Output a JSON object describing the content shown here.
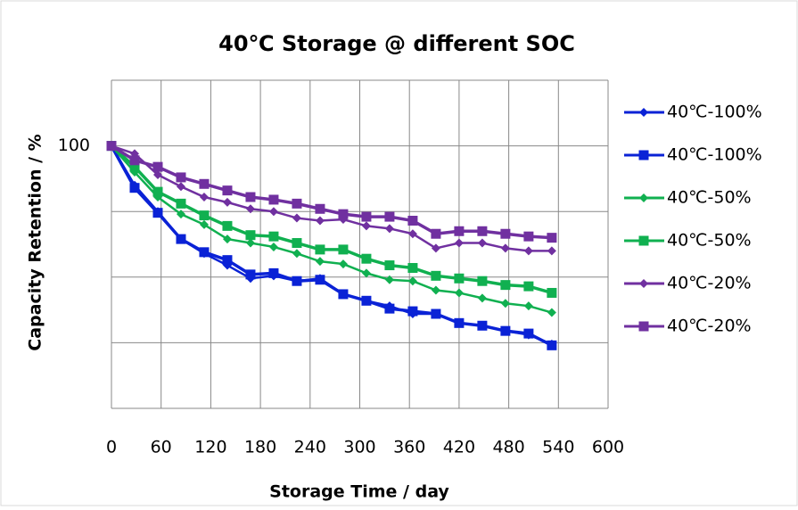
{
  "chart_data": {
    "type": "line",
    "title": "40℃ Storage @ different SOC",
    "x_label": "Storage Time / day",
    "y_label": "Capacity Retention / %",
    "x": [
      0,
      28,
      56,
      84,
      112,
      140,
      168,
      196,
      224,
      252,
      280,
      308,
      336,
      364,
      392,
      420,
      448,
      476,
      504,
      532
    ],
    "xlim": [
      0,
      600
    ],
    "xticks": [
      0,
      60,
      120,
      180,
      240,
      300,
      360,
      420,
      480,
      540,
      600
    ],
    "ylim": [
      80,
      105
    ],
    "yticks": [
      100
    ],
    "ygrid": [
      80,
      85,
      90,
      95,
      100,
      105
    ],
    "grid": true,
    "legend": "right",
    "series": [
      {
        "name": "40℃-100%",
        "color": "#0a22d6",
        "marker": "diamond",
        "values": [
          100,
          97.0,
          95.0,
          92.9,
          91.8,
          90.9,
          89.9,
          90.1,
          89.7,
          89.9,
          88.7,
          88.2,
          87.8,
          87.2,
          87.2,
          86.5,
          86.3,
          85.9,
          85.6,
          84.9
        ]
      },
      {
        "name": "40℃-100%",
        "color": "#0a22d6",
        "marker": "square",
        "values": [
          100,
          96.8,
          94.9,
          92.9,
          91.9,
          91.3,
          90.2,
          90.3,
          89.7,
          89.8,
          88.7,
          88.2,
          87.6,
          87.4,
          87.2,
          86.5,
          86.3,
          85.9,
          85.7,
          84.8
        ]
      },
      {
        "name": "40℃-50%",
        "color": "#10b050",
        "marker": "diamond",
        "values": [
          100,
          98.0,
          96.1,
          94.8,
          94.0,
          92.9,
          92.6,
          92.3,
          91.8,
          91.2,
          91.0,
          90.3,
          89.8,
          89.7,
          89.0,
          88.8,
          88.4,
          88.0,
          87.8,
          87.3
        ]
      },
      {
        "name": "40℃-50%",
        "color": "#10b050",
        "marker": "square",
        "values": [
          100,
          98.4,
          96.5,
          95.6,
          94.7,
          93.9,
          93.2,
          93.1,
          92.6,
          92.1,
          92.1,
          91.4,
          90.9,
          90.7,
          90.1,
          89.9,
          89.7,
          89.4,
          89.3,
          88.8
        ]
      },
      {
        "name": "40℃-20%",
        "color": "#7030a0",
        "marker": "diamond",
        "values": [
          100,
          99.4,
          97.8,
          96.9,
          96.1,
          95.7,
          95.2,
          95.0,
          94.5,
          94.3,
          94.4,
          93.9,
          93.7,
          93.3,
          92.2,
          92.6,
          92.6,
          92.2,
          92.0,
          92.0
        ]
      },
      {
        "name": "40℃-20%",
        "color": "#7030a0",
        "marker": "square",
        "values": [
          100,
          98.9,
          98.4,
          97.6,
          97.1,
          96.6,
          96.1,
          95.9,
          95.6,
          95.2,
          94.8,
          94.6,
          94.6,
          94.3,
          93.3,
          93.5,
          93.5,
          93.3,
          93.1,
          93.0
        ]
      }
    ]
  }
}
